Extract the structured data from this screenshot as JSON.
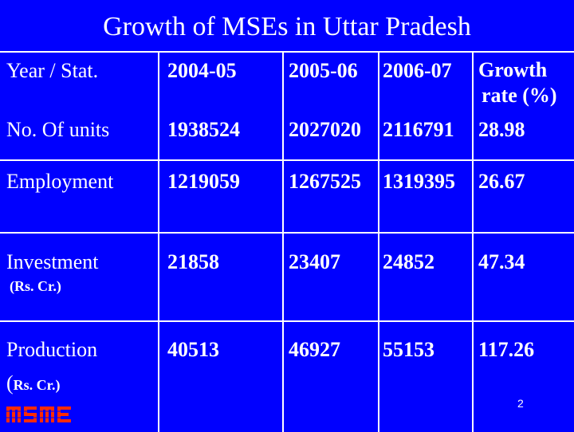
{
  "title": "Growth of  MSEs in Uttar Pradesh",
  "header": {
    "label": "Year / Stat.",
    "col1": "2004-05",
    "col2": "2005-06",
    "col3": "2006-07",
    "growth_line1": "Growth",
    "growth_line2": "rate (%)"
  },
  "rows": [
    {
      "label": "No. Of units",
      "sublabel": "",
      "v1": "1938524",
      "v2": "2027020",
      "v3": "2116791",
      "growth": "28.98"
    },
    {
      "label": "Employment",
      "sublabel": "",
      "v1": "1219059",
      "v2": "1267525",
      "v3": "1319395",
      "growth": "26.67"
    },
    {
      "label": "Investment",
      "sublabel": "(Rs. Cr.)",
      "v1": "21858",
      "v2": "23407",
      "v3": "24852",
      "growth": "47.34"
    },
    {
      "label": "Production",
      "sublabel_prefix": "(",
      "sublabel": "Rs. Cr.)",
      "v1": "40513",
      "v2": "46927",
      "v3": "55153",
      "growth": "117.26"
    }
  ],
  "logo": {
    "icon": "msme-logo",
    "text": "MSME",
    "color": "#ff2a00"
  },
  "page_number": "2"
}
